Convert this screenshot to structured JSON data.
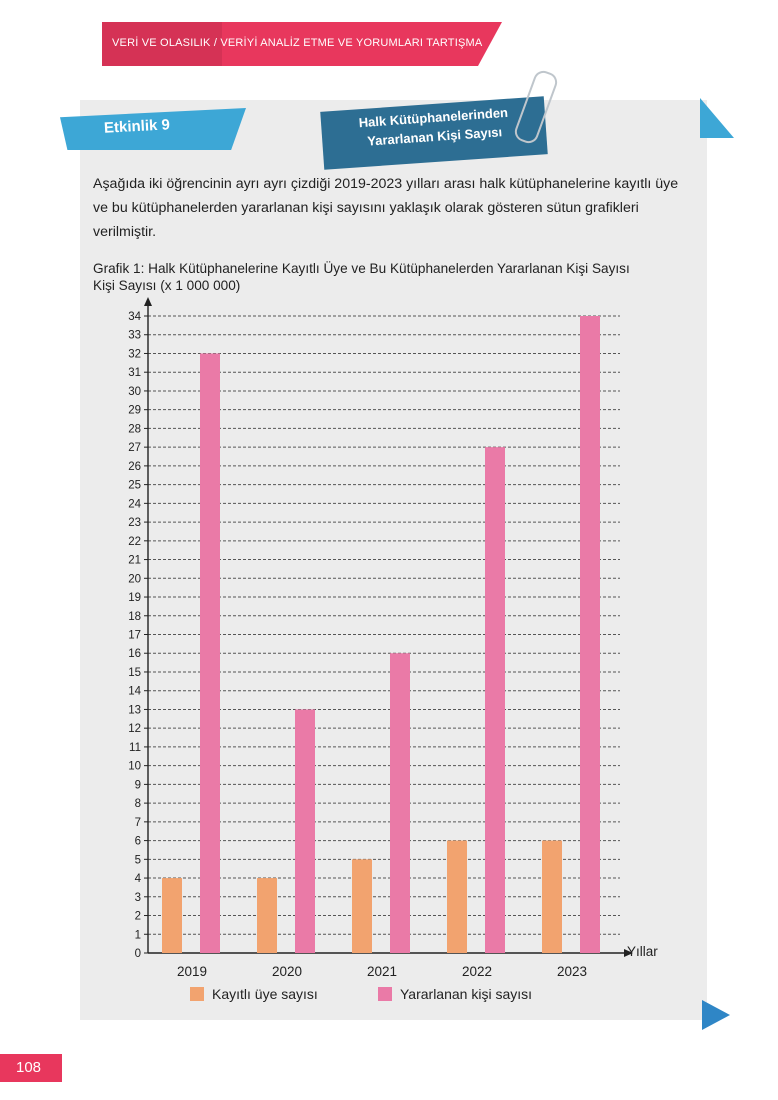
{
  "header": {
    "banner_text": "VERİ VE OLASILIK / VERİYİ ANALİZ ETME VE YORUMLARI TARTIŞMA"
  },
  "activity": {
    "label": "Etkinlik 9"
  },
  "title_tag": {
    "line1": "Halk Kütüphanelerinden",
    "line2": "Yararlanan Kişi Sayısı"
  },
  "intro_text": "Aşağıda iki öğrencinin ayrı ayrı çizdiği 2019-2023 yılları arası halk kütüphanelerine kayıtlı üye ve bu kütüphanelerden yararlanan kişi sayısını yaklaşık olarak gösteren sütun grafikleri verilmiştir.",
  "page_number": "108",
  "colors": {
    "accent_pink": "#e8375d",
    "accent_blue": "#3da7d6",
    "dark_blue": "#2d6e93",
    "card_bg": "#ececec",
    "series_registered": "#f2a36f",
    "series_benefiting": "#ea7aa7"
  },
  "chart_data": {
    "type": "bar",
    "title": "Grafik 1: Halk Kütüphanelerine Kayıtlı Üye ve Bu Kütüphanelerden Yararlanan Kişi Sayısı",
    "ylabel": "Kişi Sayısı (x 1 000 000)",
    "xlabel": "Yıllar",
    "categories": [
      "2019",
      "2020",
      "2021",
      "2022",
      "2023"
    ],
    "series": [
      {
        "name": "Kayıtlı üye sayısı",
        "color": "#f2a36f",
        "values": [
          4,
          4,
          5,
          6,
          6
        ]
      },
      {
        "name": "Yararlanan kişi sayısı",
        "color": "#ea7aa7",
        "values": [
          32,
          13,
          16,
          27,
          34
        ]
      }
    ],
    "ylim": [
      0,
      34
    ],
    "yticks": [
      0,
      1,
      2,
      3,
      4,
      5,
      6,
      7,
      8,
      9,
      10,
      11,
      12,
      13,
      14,
      15,
      16,
      17,
      18,
      19,
      20,
      21,
      22,
      23,
      24,
      25,
      26,
      27,
      28,
      29,
      30,
      31,
      32,
      33,
      34
    ],
    "grid": true,
    "legend": "bottom"
  }
}
